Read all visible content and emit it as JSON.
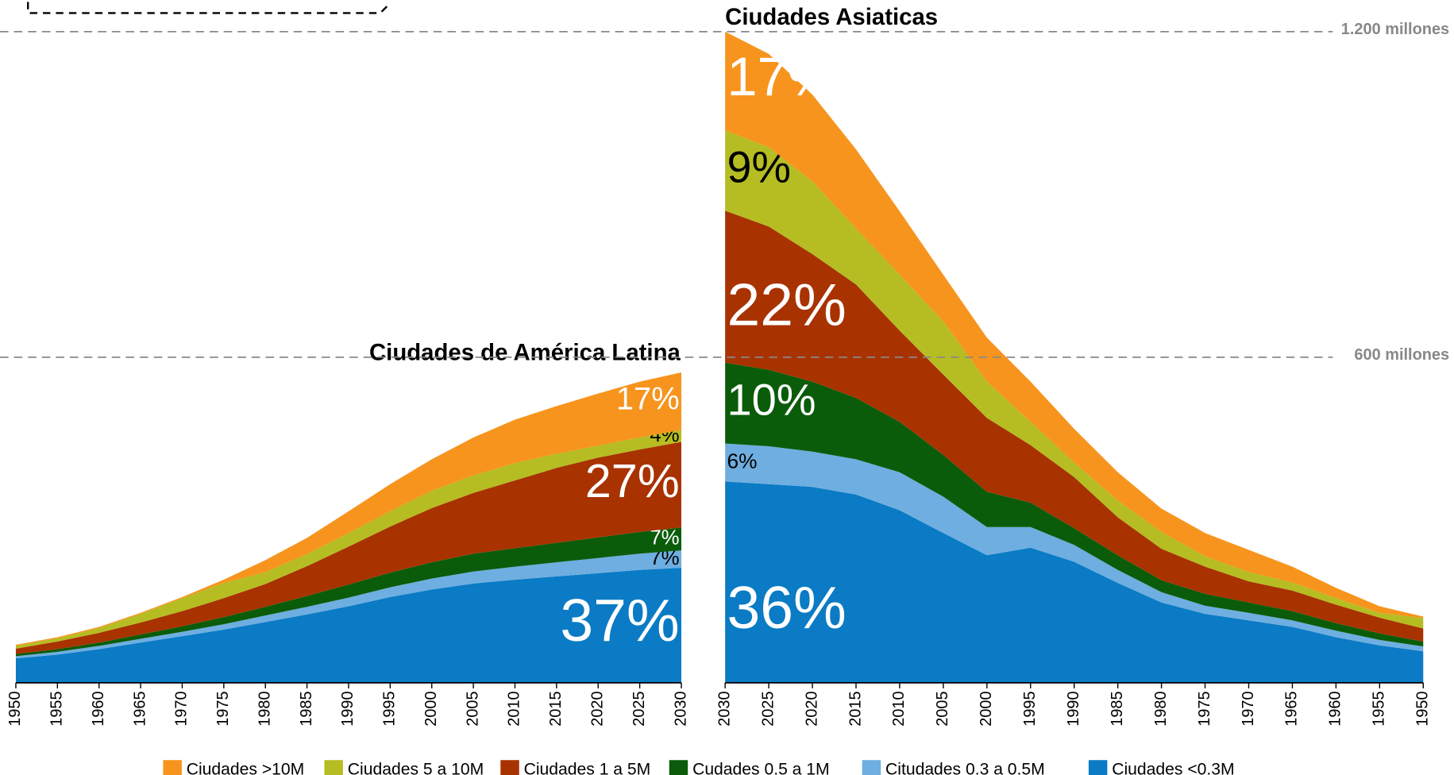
{
  "chart_data": [
    {
      "type": "area",
      "title": "Ciudades de América Latina",
      "categories": [
        "1950",
        "1955",
        "1960",
        "1965",
        "1970",
        "1975",
        "1980",
        "1985",
        "1990",
        "1995",
        "2000",
        "2005",
        "2010",
        "2015",
        "2020",
        "2025",
        "2030"
      ],
      "ylim": [
        0,
        1200
      ],
      "series": [
        {
          "name": "Ciudades <0.3M",
          "color": "#0a7bc4",
          "label_color": "#ffffff",
          "label": "37%",
          "values": [
            45,
            52,
            62,
            74,
            86,
            98,
            112,
            126,
            141,
            158,
            172,
            183,
            190,
            196,
            202,
            208,
            212
          ]
        },
        {
          "name": "Citudades 0.3 a 0.5M",
          "color": "#6eaee0",
          "label_color": "#000000",
          "label": "7%",
          "values": [
            4,
            5,
            6,
            7,
            8,
            10,
            12,
            14,
            16,
            18,
            20,
            22,
            24,
            26,
            28,
            30,
            32
          ]
        },
        {
          "name": "Cudades 0.5 a 1M",
          "color": "#0a5c0a",
          "label_color": "#ffffff",
          "label": "7%",
          "values": [
            4,
            5,
            6,
            8,
            10,
            13,
            16,
            20,
            24,
            27,
            30,
            33,
            34,
            36,
            38,
            40,
            42
          ]
        },
        {
          "name": "Ciudades 1 a 5M",
          "color": "#a83200",
          "label_color": "#ffffff",
          "label": "27%",
          "values": [
            10,
            14,
            18,
            22,
            28,
            35,
            42,
            55,
            70,
            85,
            100,
            112,
            125,
            138,
            147,
            152,
            158
          ]
        },
        {
          "name": "Ciudades 5 a 10M",
          "color": "#b5bd22",
          "label_color": "#000000",
          "label": "4%",
          "values": [
            5,
            6,
            9,
            16,
            24,
            28,
            22,
            22,
            25,
            28,
            32,
            32,
            32,
            26,
            22,
            22,
            22
          ]
        },
        {
          "name": "Ciudades >10M",
          "color": "#f7941d",
          "label_color": "#ffffff",
          "label": "17%",
          "values": [
            2,
            2,
            2,
            2,
            2,
            6,
            22,
            30,
            40,
            50,
            58,
            70,
            80,
            88,
            96,
            103,
            106
          ]
        }
      ]
    },
    {
      "type": "area",
      "title": "Ciudades Asiaticas",
      "categories": [
        "2030",
        "2025",
        "2020",
        "2015",
        "2010",
        "2005",
        "2000",
        "1995",
        "1990",
        "1985",
        "1980",
        "1975",
        "1970",
        "1965",
        "1960",
        "1955",
        "1950"
      ],
      "ylim": [
        0,
        1200
      ],
      "yticks": [
        {
          "value": 600,
          "label": "600 millones"
        },
        {
          "value": 1200,
          "label": "1.200 millones"
        }
      ],
      "series": [
        {
          "color": "#0a7bc4",
          "label_color": "#ffffff",
          "label": "36%",
          "values": [
            371,
            366,
            361,
            347,
            318,
            276,
            235,
            249,
            223,
            184,
            148,
            127,
            115,
            103,
            84,
            69,
            58
          ]
        },
        {
          "color": "#6eaee0",
          "label_color": "#000000",
          "label": "6%",
          "values": [
            70,
            70,
            65,
            65,
            70,
            67,
            52,
            38,
            31,
            24,
            19,
            15,
            14,
            12,
            12,
            10,
            9
          ]
        },
        {
          "color": "#0a5c0a",
          "label_color": "#ffffff",
          "label": "10%",
          "values": [
            149,
            141,
            129,
            113,
            93,
            77,
            65,
            45,
            31,
            27,
            22,
            22,
            19,
            17,
            14,
            12,
            9
          ]
        },
        {
          "color": "#a83200",
          "label_color": "#ffffff",
          "label": "22%",
          "values": [
            280,
            264,
            235,
            209,
            168,
            148,
            136,
            106,
            94,
            70,
            58,
            50,
            39,
            38,
            34,
            29,
            24
          ]
        },
        {
          "color": "#b5bd22",
          "label_color": "#000000",
          "label": "9%",
          "values": [
            148,
            146,
            134,
            103,
            103,
            98,
            67,
            43,
            27,
            31,
            31,
            19,
            17,
            15,
            12,
            9,
            19
          ]
        },
        {
          "color": "#f7941d",
          "label_color": "#ffffff",
          "label": "17%",
          "values": [
            182,
            172,
            160,
            146,
            117,
            86,
            81,
            74,
            62,
            52,
            43,
            43,
            41,
            29,
            19,
            12,
            3
          ]
        }
      ]
    }
  ]
}
